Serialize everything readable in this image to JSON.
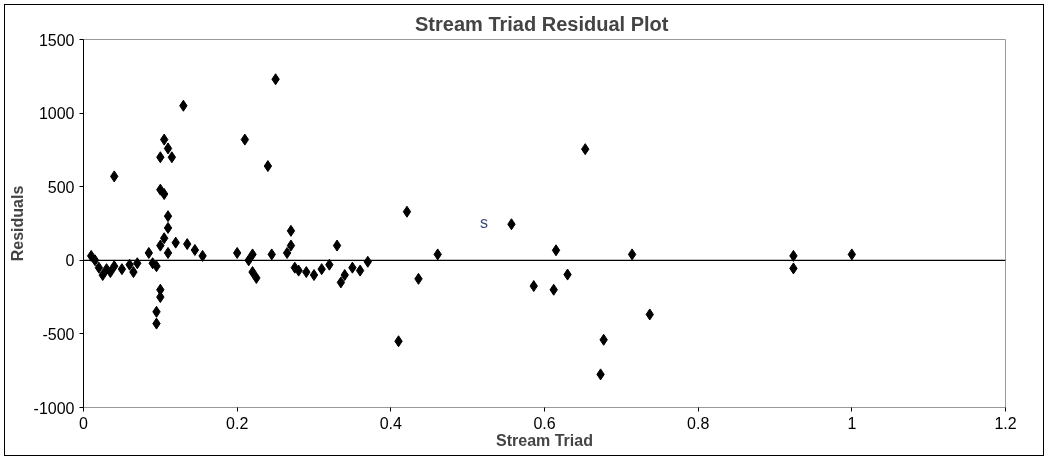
{
  "chart_data": {
    "type": "scatter",
    "title": "Stream Triad  Residual Plot",
    "xlabel": "Stream Triad",
    "ylabel": "Residuals",
    "x": [
      0.01,
      0.015,
      0.02,
      0.025,
      0.03,
      0.035,
      0.04,
      0.05,
      0.06,
      0.065,
      0.07,
      0.04,
      0.085,
      0.09,
      0.095,
      0.1,
      0.1,
      0.095,
      0.095,
      0.1,
      0.105,
      0.11,
      0.115,
      0.1,
      0.105,
      0.11,
      0.11,
      0.105,
      0.1,
      0.11,
      0.13,
      0.12,
      0.135,
      0.145,
      0.155,
      0.2,
      0.21,
      0.215,
      0.22,
      0.225,
      0.22,
      0.24,
      0.25,
      0.245,
      0.265,
      0.27,
      0.27,
      0.275,
      0.28,
      0.29,
      0.3,
      0.31,
      0.32,
      0.33,
      0.335,
      0.34,
      0.35,
      0.36,
      0.37,
      0.41,
      0.421,
      0.436,
      0.461,
      0.557,
      0.586,
      0.615,
      0.612,
      0.63,
      0.653,
      0.677,
      0.673,
      0.714,
      0.737,
      0.924,
      0.924,
      1.0
    ],
    "values": [
      30,
      0,
      -50,
      -100,
      -60,
      -80,
      -40,
      -60,
      -30,
      -80,
      -20,
      570,
      50,
      -20,
      -40,
      -200,
      -250,
      -350,
      -430,
      700,
      820,
      760,
      700,
      480,
      450,
      300,
      220,
      150,
      100,
      50,
      1050,
      120,
      110,
      70,
      30,
      50,
      820,
      0,
      -80,
      -120,
      40,
      640,
      1230,
      40,
      50,
      200,
      100,
      -50,
      -70,
      -80,
      -100,
      -60,
      -30,
      100,
      -150,
      -100,
      -50,
      -70,
      -10,
      -550,
      330,
      -126,
      40,
      245,
      -175,
      68,
      -200,
      -97,
      755,
      -540,
      -775,
      40,
      -368,
      30,
      -55,
      40
    ],
    "color": "#000000",
    "marker": "diamond",
    "xlim": [
      0,
      1.2
    ],
    "xticks": [
      0,
      0.2,
      0.4,
      0.6,
      0.8,
      1,
      1.2
    ],
    "ylim": [
      -1000,
      1500
    ],
    "yticks": [
      -1000,
      -500,
      0,
      500,
      1000,
      1500
    ],
    "ref_lines": [
      {
        "axis": "y",
        "value": 0,
        "color": "#000000"
      }
    ],
    "annotations": [
      "s"
    ]
  }
}
